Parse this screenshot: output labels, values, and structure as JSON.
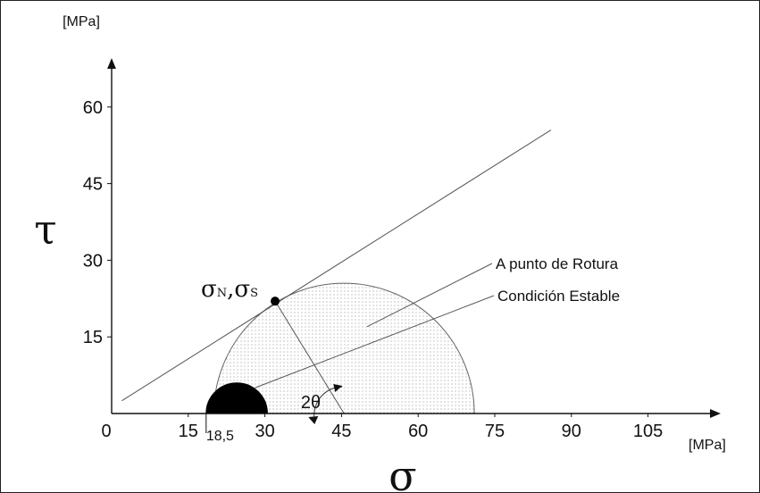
{
  "chart_data": {
    "type": "line",
    "axes": {
      "x": {
        "symbol": "σ",
        "unit": "[MPa]",
        "ticks": [
          "0",
          "15",
          "30",
          "45",
          "60",
          "75",
          "90",
          "105"
        ],
        "tick_values": [
          0,
          15,
          30,
          45,
          60,
          75,
          90,
          105
        ],
        "range": [
          0,
          118
        ]
      },
      "y": {
        "symbol": "τ",
        "unit": "[MPa]",
        "ticks": [
          "15",
          "30",
          "45",
          "60"
        ],
        "tick_values": [
          15,
          30,
          45,
          60
        ],
        "range": [
          0,
          72
        ]
      }
    },
    "failure_envelope": {
      "x": [
        2,
        86
      ],
      "y": [
        2.5,
        55.5
      ]
    },
    "stable_circle": {
      "center": 24.5,
      "radius": 6.0,
      "fill": "#000000"
    },
    "rupture_circle": {
      "center": 45.5,
      "radius": 25.5,
      "fill": "stippled"
    },
    "tangent_point": {
      "x": 32,
      "y": 22,
      "label_main1": "σ",
      "label_sub1": "N",
      "label_sep": ",",
      "label_main2": "σ",
      "label_sub2": "S"
    },
    "angle_label": "2θ",
    "min_stress_label": "18,5",
    "min_stress_value": 18.5,
    "annotations": [
      {
        "text": "A punto de Rotura",
        "target": [
          50,
          17
        ]
      },
      {
        "text": "Condición Estable",
        "target": [
          28,
          5
        ]
      }
    ]
  },
  "colors": {
    "axis": "#111111",
    "line": "#444444",
    "stable_fill": "#000000"
  }
}
